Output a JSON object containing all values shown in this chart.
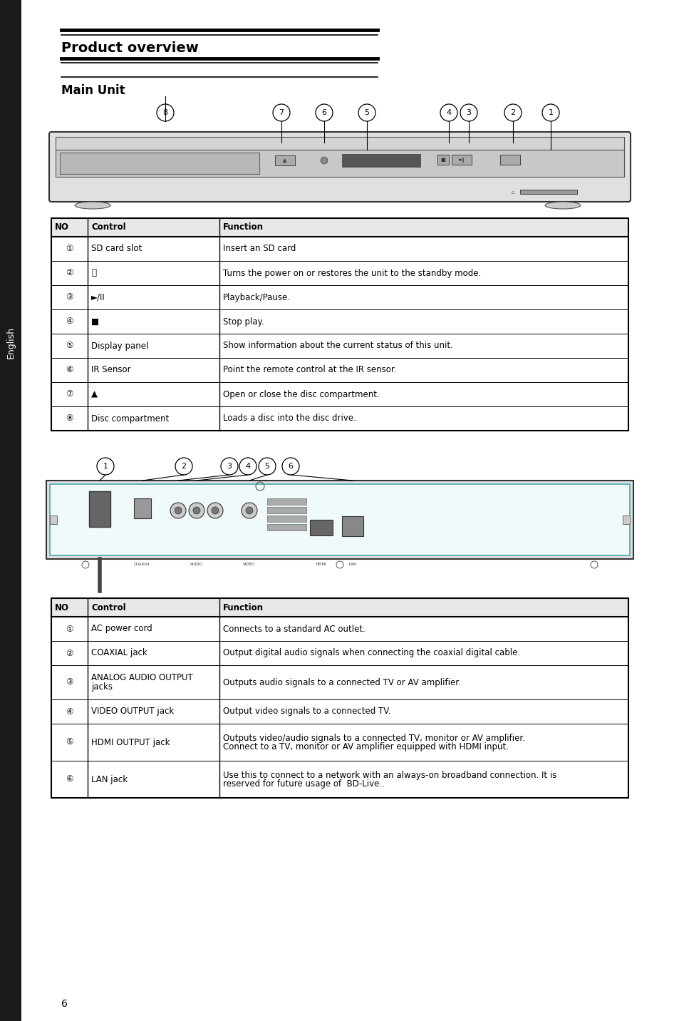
{
  "bg_color": "#ffffff",
  "text_color": "#000000",
  "title": "Product overview",
  "subtitle": "Main Unit",
  "sidebar_text": "English",
  "page_number": "6",
  "table1_header": [
    "NO",
    "Control",
    "Function"
  ],
  "table1_rows": [
    [
      "①",
      "SD card slot",
      "Insert an SD card"
    ],
    [
      "②",
      "⏻",
      "Turns the power on or restores the unit to the standby mode."
    ],
    [
      "③",
      "►/II",
      "Playback/Pause."
    ],
    [
      "④",
      "■",
      "Stop play."
    ],
    [
      "⑤",
      "Display panel",
      "Show information about the current status of this unit."
    ],
    [
      "⑥",
      "IR Sensor",
      "Point the remote control at the IR sensor."
    ],
    [
      "⑦",
      "▲",
      "Open or close the disc compartment."
    ],
    [
      "⑧",
      "Disc compartment",
      "Loads a disc into the disc drive."
    ]
  ],
  "table2_header": [
    "NO",
    "Control",
    "Function"
  ],
  "table2_rows": [
    [
      "①",
      "AC power cord",
      "Connects to a standard AC outlet."
    ],
    [
      "②",
      "COAXIAL jack",
      "Output digital audio signals when connecting the coaxial digital cable."
    ],
    [
      "③",
      "ANALOG AUDIO OUTPUT\njacks",
      "Outputs audio signals to a connected TV or AV amplifier."
    ],
    [
      "④",
      "VIDEO OUTPUT jack",
      "Output video signals to a connected TV."
    ],
    [
      "⑤",
      "HDMI OUTPUT jack",
      "Outputs video/audio signals to a connected TV, monitor or AV amplifier.\nConnect to a TV, monitor or AV amplifier equipped with HDMI input."
    ],
    [
      "⑥",
      "LAN jack",
      "Use this to connect to a network with an always-on broadband connection. It is\nreserved for future usage of  BD-Live.."
    ]
  ]
}
